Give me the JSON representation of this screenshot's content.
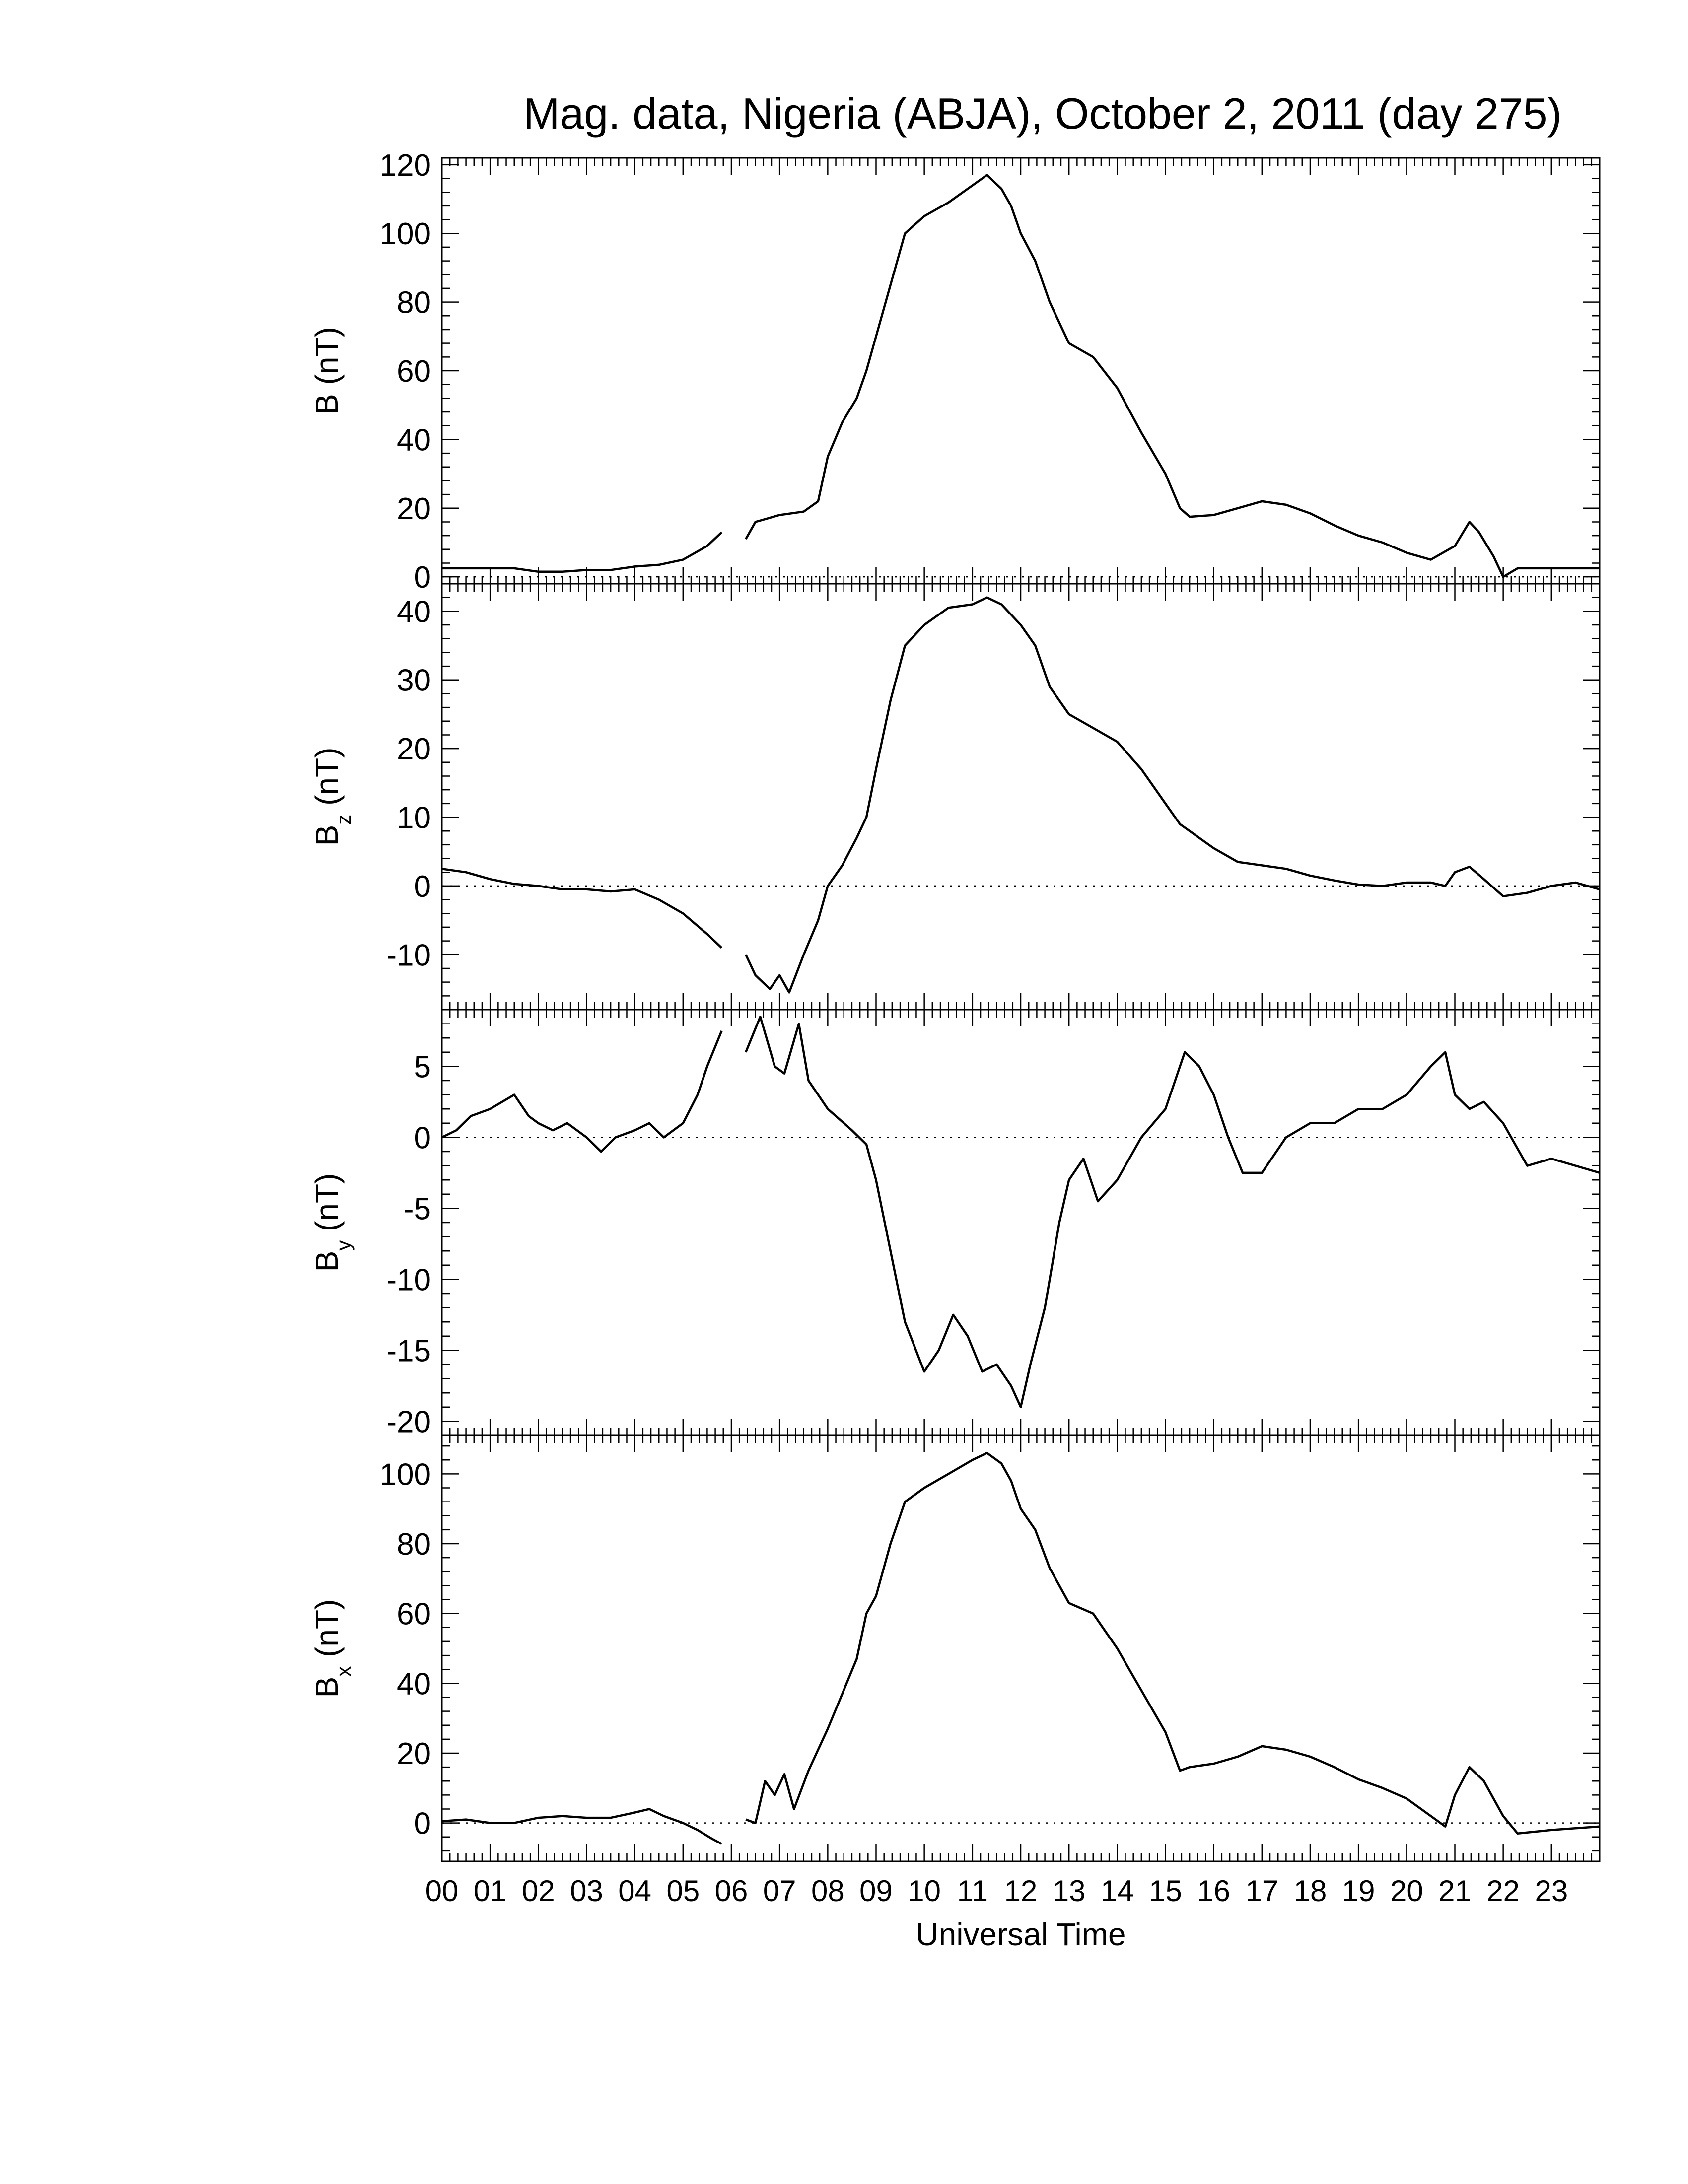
{
  "chart_data": {
    "type": "line",
    "title": "Mag. data, Nigeria (ABJA), October 2, 2011 (day 275)",
    "xlabel": "Universal Time",
    "x_unit": "hours UT",
    "xlim": [
      0,
      24
    ],
    "x_ticks": [
      "00",
      "01",
      "02",
      "03",
      "04",
      "05",
      "06",
      "07",
      "08",
      "09",
      "10",
      "11",
      "12",
      "13",
      "14",
      "15",
      "16",
      "17",
      "18",
      "19",
      "20",
      "21",
      "22",
      "23"
    ],
    "line_color": "#000000",
    "zero_line": "dotted",
    "data_gap_hours": [
      5.8,
      6.3
    ],
    "panels": [
      {
        "ylabel": "B (nT)",
        "label_base": "B",
        "label_sub": "",
        "label_unit": " (nT)",
        "ylim": [
          -2,
          122
        ],
        "yticks": [
          0,
          20,
          40,
          60,
          80,
          100,
          120
        ],
        "series": [
          [
            0,
            2.5
          ],
          [
            0.5,
            2.5
          ],
          [
            1,
            2.5
          ],
          [
            1.5,
            2.5
          ],
          [
            2,
            1.5
          ],
          [
            2.5,
            1.5
          ],
          [
            3,
            2
          ],
          [
            3.5,
            2
          ],
          [
            4,
            3
          ],
          [
            4.5,
            3.5
          ],
          [
            5,
            5
          ],
          [
            5.5,
            9
          ],
          [
            5.8,
            13
          ],
          [
            6.3,
            11
          ],
          [
            6.5,
            16
          ],
          [
            7,
            18
          ],
          [
            7.5,
            19
          ],
          [
            7.8,
            22
          ],
          [
            8,
            35
          ],
          [
            8.3,
            45
          ],
          [
            8.6,
            52
          ],
          [
            8.8,
            60
          ],
          [
            9,
            70
          ],
          [
            9.3,
            85
          ],
          [
            9.6,
            100
          ],
          [
            10,
            105
          ],
          [
            10.5,
            109
          ],
          [
            11,
            114
          ],
          [
            11.3,
            117
          ],
          [
            11.6,
            113
          ],
          [
            11.8,
            108
          ],
          [
            12,
            100
          ],
          [
            12.3,
            92
          ],
          [
            12.6,
            80
          ],
          [
            13,
            68
          ],
          [
            13.5,
            64
          ],
          [
            14,
            55
          ],
          [
            14.5,
            42
          ],
          [
            15,
            30
          ],
          [
            15.3,
            20
          ],
          [
            15.5,
            17.5
          ],
          [
            16,
            18
          ],
          [
            16.5,
            20
          ],
          [
            17,
            22
          ],
          [
            17.5,
            21
          ],
          [
            18,
            18.5
          ],
          [
            18.5,
            15
          ],
          [
            19,
            12
          ],
          [
            19.5,
            10
          ],
          [
            20,
            7
          ],
          [
            20.5,
            5
          ],
          [
            21,
            9
          ],
          [
            21.3,
            16
          ],
          [
            21.5,
            13
          ],
          [
            21.8,
            6
          ],
          [
            22,
            0
          ],
          [
            22.3,
            2.5
          ],
          [
            23,
            2.5
          ],
          [
            24,
            2.5
          ]
        ]
      },
      {
        "ylabel": "Bz (nT)",
        "label_base": "B",
        "label_sub": "z",
        "label_unit": " (nT)",
        "ylim": [
          -18,
          44
        ],
        "yticks": [
          -10,
          0,
          10,
          20,
          30,
          40
        ],
        "series": [
          [
            0,
            2.5
          ],
          [
            0.5,
            2
          ],
          [
            1,
            1
          ],
          [
            1.5,
            0.3
          ],
          [
            2,
            0
          ],
          [
            2.5,
            -0.5
          ],
          [
            3,
            -0.5
          ],
          [
            3.5,
            -0.8
          ],
          [
            4,
            -0.5
          ],
          [
            4.5,
            -2
          ],
          [
            5,
            -4
          ],
          [
            5.5,
            -7
          ],
          [
            5.8,
            -9
          ],
          [
            6.3,
            -10
          ],
          [
            6.5,
            -13
          ],
          [
            6.8,
            -15
          ],
          [
            7,
            -13
          ],
          [
            7.2,
            -15.5
          ],
          [
            7.5,
            -10
          ],
          [
            7.8,
            -5
          ],
          [
            8,
            0
          ],
          [
            8.3,
            3
          ],
          [
            8.6,
            7
          ],
          [
            8.8,
            10
          ],
          [
            9,
            17
          ],
          [
            9.3,
            27
          ],
          [
            9.6,
            35
          ],
          [
            10,
            38
          ],
          [
            10.5,
            40.5
          ],
          [
            11,
            41
          ],
          [
            11.3,
            42
          ],
          [
            11.6,
            41
          ],
          [
            12,
            38
          ],
          [
            12.3,
            35
          ],
          [
            12.6,
            29
          ],
          [
            13,
            25
          ],
          [
            13.5,
            23
          ],
          [
            14,
            21
          ],
          [
            14.5,
            17
          ],
          [
            15,
            12
          ],
          [
            15.3,
            9
          ],
          [
            15.5,
            8
          ],
          [
            16,
            5.5
          ],
          [
            16.5,
            3.5
          ],
          [
            17,
            3
          ],
          [
            17.5,
            2.5
          ],
          [
            18,
            1.5
          ],
          [
            18.5,
            0.8
          ],
          [
            19,
            0.2
          ],
          [
            19.5,
            0
          ],
          [
            20,
            0.5
          ],
          [
            20.5,
            0.5
          ],
          [
            20.8,
            0
          ],
          [
            21,
            2
          ],
          [
            21.3,
            2.8
          ],
          [
            21.6,
            1
          ],
          [
            22,
            -1.5
          ],
          [
            22.5,
            -1
          ],
          [
            23,
            0
          ],
          [
            23.5,
            0.5
          ],
          [
            24,
            -0.5
          ]
        ]
      },
      {
        "ylabel": "By (nT)",
        "label_base": "B",
        "label_sub": "y",
        "label_unit": " (nT)",
        "ylim": [
          -21,
          9
        ],
        "yticks": [
          -20,
          -15,
          -10,
          -5,
          0,
          5
        ],
        "series": [
          [
            0,
            0
          ],
          [
            0.3,
            0.5
          ],
          [
            0.6,
            1.5
          ],
          [
            1,
            2
          ],
          [
            1.5,
            3
          ],
          [
            1.8,
            1.5
          ],
          [
            2,
            1
          ],
          [
            2.3,
            0.5
          ],
          [
            2.6,
            1
          ],
          [
            3,
            0
          ],
          [
            3.3,
            -1
          ],
          [
            3.6,
            0
          ],
          [
            4,
            0.5
          ],
          [
            4.3,
            1
          ],
          [
            4.6,
            0
          ],
          [
            5,
            1
          ],
          [
            5.3,
            3
          ],
          [
            5.5,
            5
          ],
          [
            5.8,
            7.5
          ],
          [
            6.3,
            6
          ],
          [
            6.6,
            8.5
          ],
          [
            6.9,
            5
          ],
          [
            7.1,
            4.5
          ],
          [
            7.4,
            8
          ],
          [
            7.6,
            4
          ],
          [
            8,
            2
          ],
          [
            8.5,
            0.5
          ],
          [
            8.8,
            -0.5
          ],
          [
            9,
            -3
          ],
          [
            9.3,
            -8
          ],
          [
            9.6,
            -13
          ],
          [
            10,
            -16.5
          ],
          [
            10.3,
            -15
          ],
          [
            10.6,
            -12.5
          ],
          [
            10.9,
            -14
          ],
          [
            11.2,
            -16.5
          ],
          [
            11.5,
            -16
          ],
          [
            11.8,
            -17.5
          ],
          [
            12,
            -19
          ],
          [
            12.2,
            -16
          ],
          [
            12.5,
            -12
          ],
          [
            12.8,
            -6
          ],
          [
            13,
            -3
          ],
          [
            13.3,
            -1.5
          ],
          [
            13.6,
            -4.5
          ],
          [
            14,
            -3
          ],
          [
            14.5,
            0
          ],
          [
            15,
            2
          ],
          [
            15.4,
            6
          ],
          [
            15.7,
            5
          ],
          [
            16,
            3
          ],
          [
            16.3,
            0
          ],
          [
            16.6,
            -2.5
          ],
          [
            17,
            -2.5
          ],
          [
            17.5,
            0
          ],
          [
            18,
            1
          ],
          [
            18.5,
            1
          ],
          [
            19,
            2
          ],
          [
            19.5,
            2
          ],
          [
            20,
            3
          ],
          [
            20.5,
            5
          ],
          [
            20.8,
            6
          ],
          [
            21,
            3
          ],
          [
            21.3,
            2
          ],
          [
            21.6,
            2.5
          ],
          [
            22,
            1
          ],
          [
            22.5,
            -2
          ],
          [
            23,
            -1.5
          ],
          [
            23.5,
            -2
          ],
          [
            24,
            -2.5
          ]
        ]
      },
      {
        "ylabel": "Bx (nT)",
        "label_base": "B",
        "label_sub": "x",
        "label_unit": " (nT)",
        "ylim": [
          -11,
          111
        ],
        "yticks": [
          0,
          20,
          40,
          60,
          80,
          100
        ],
        "series": [
          [
            0,
            0.5
          ],
          [
            0.5,
            1
          ],
          [
            1,
            0
          ],
          [
            1.5,
            0
          ],
          [
            2,
            1.5
          ],
          [
            2.5,
            2
          ],
          [
            3,
            1.5
          ],
          [
            3.5,
            1.5
          ],
          [
            4,
            3
          ],
          [
            4.3,
            4
          ],
          [
            4.6,
            2
          ],
          [
            5,
            0
          ],
          [
            5.3,
            -2
          ],
          [
            5.6,
            -4.5
          ],
          [
            5.8,
            -6
          ],
          [
            6.3,
            1
          ],
          [
            6.5,
            0
          ],
          [
            6.7,
            12
          ],
          [
            6.9,
            8
          ],
          [
            7.1,
            14
          ],
          [
            7.3,
            4
          ],
          [
            7.6,
            15
          ],
          [
            8,
            27
          ],
          [
            8.3,
            37
          ],
          [
            8.6,
            47
          ],
          [
            8.8,
            60
          ],
          [
            9,
            65
          ],
          [
            9.3,
            80
          ],
          [
            9.6,
            92
          ],
          [
            10,
            96
          ],
          [
            10.5,
            100
          ],
          [
            11,
            104
          ],
          [
            11.3,
            106
          ],
          [
            11.6,
            103
          ],
          [
            11.8,
            98
          ],
          [
            12,
            90
          ],
          [
            12.3,
            84
          ],
          [
            12.6,
            73
          ],
          [
            13,
            63
          ],
          [
            13.5,
            60
          ],
          [
            14,
            50
          ],
          [
            14.5,
            38
          ],
          [
            15,
            26
          ],
          [
            15.3,
            15
          ],
          [
            15.5,
            16
          ],
          [
            16,
            17
          ],
          [
            16.5,
            19
          ],
          [
            17,
            22
          ],
          [
            17.5,
            21
          ],
          [
            18,
            19
          ],
          [
            18.5,
            16
          ],
          [
            19,
            12.5
          ],
          [
            19.5,
            10
          ],
          [
            20,
            7
          ],
          [
            20.5,
            2
          ],
          [
            20.8,
            -1
          ],
          [
            21,
            8
          ],
          [
            21.3,
            16
          ],
          [
            21.6,
            12
          ],
          [
            22,
            2
          ],
          [
            22.3,
            -3
          ],
          [
            23,
            -2
          ],
          [
            24,
            -1
          ]
        ]
      }
    ]
  }
}
